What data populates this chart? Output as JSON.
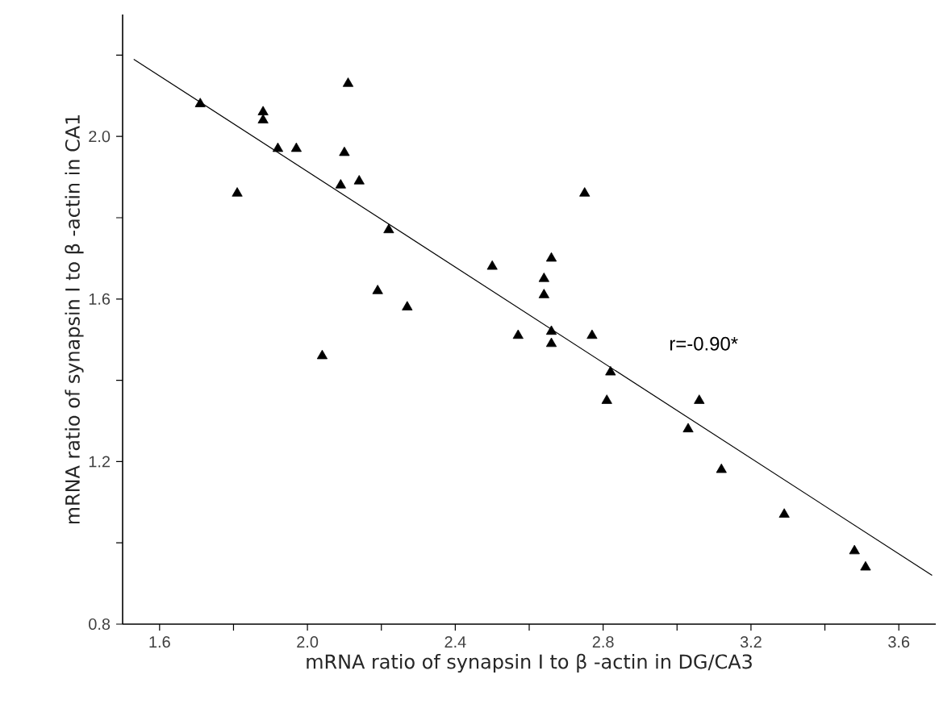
{
  "chart_data": {
    "type": "scatter",
    "xlabel": "mRNA ratio of synapsin Ⅰ to β -actin in DG/CA3",
    "ylabel": "mRNA ratio of synapsin Ⅰ to β -actin in CA1",
    "annotations": [
      "r=-0.90*"
    ],
    "xlim": [
      1.5,
      3.7
    ],
    "ylim": [
      0.8,
      2.3
    ],
    "xticks": [
      1.6,
      {
        "value": 1.8,
        "label": null
      },
      {
        "value": 2.0,
        "label": "2.0"
      },
      {
        "value": 2.2,
        "label": null
      },
      2.4,
      {
        "value": 2.6,
        "label": null
      },
      2.8,
      {
        "value": 3.0,
        "label": null
      },
      3.2,
      {
        "value": 3.4,
        "label": null
      },
      3.6
    ],
    "yticks": [
      0.8,
      {
        "value": 1.0,
        "label": null
      },
      1.2,
      {
        "value": 1.4,
        "label": null
      },
      1.6,
      {
        "value": 1.8,
        "label": null
      },
      {
        "value": 2.0,
        "label": "2.0"
      },
      {
        "value": 2.2,
        "label": null
      }
    ],
    "grid": false,
    "series": [
      {
        "marker": "triangle",
        "color": "#000000",
        "x": [
          1.71,
          1.88,
          1.88,
          2.11,
          1.92,
          1.97,
          2.1,
          1.81,
          2.09,
          2.14,
          2.22,
          2.19,
          2.27,
          2.04,
          2.5,
          2.57,
          2.75,
          2.66,
          2.64,
          2.64,
          2.66,
          2.66,
          2.77,
          2.82,
          2.81,
          3.06,
          3.03,
          3.12,
          3.29,
          3.48,
          3.51
        ],
        "values": [
          2.08,
          2.06,
          2.04,
          2.13,
          1.97,
          1.97,
          1.96,
          1.86,
          1.88,
          1.89,
          1.77,
          1.62,
          1.58,
          1.46,
          1.68,
          1.51,
          1.86,
          1.7,
          1.65,
          1.61,
          1.52,
          1.49,
          1.51,
          1.42,
          1.35,
          1.35,
          1.28,
          1.18,
          1.07,
          0.98,
          0.94
        ]
      },
      {
        "type": "line",
        "color": "#000000",
        "x": [
          1.53,
          3.69
        ],
        "values": [
          2.19,
          0.92
        ]
      }
    ]
  }
}
